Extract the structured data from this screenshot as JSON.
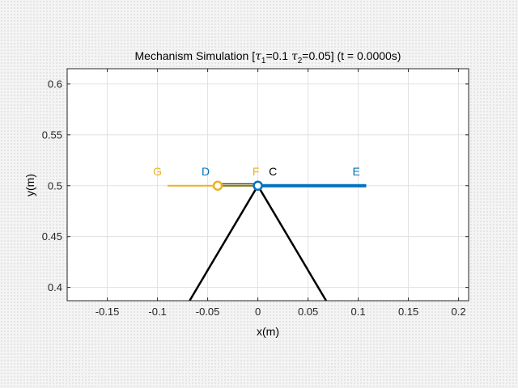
{
  "chart_data": {
    "type": "line",
    "title": {
      "prefix": "Mechanism Simulation [",
      "tau1_symbol": "τ",
      "tau1_sub": "1",
      "tau1_value": "=0.1 ",
      "tau2_symbol": "τ",
      "tau2_sub": "2",
      "tau2_value": "=0.05] (t = 0.0000s)"
    },
    "xlabel": "x(m)",
    "ylabel": "y(m)",
    "xlim": [
      -0.19,
      0.21
    ],
    "ylim": [
      0.387,
      0.615
    ],
    "grid": true,
    "xticks": [
      -0.15,
      -0.1,
      -0.05,
      0,
      0.05,
      0.1,
      0.15,
      0.2
    ],
    "yticks": [
      0.4,
      0.45,
      0.5,
      0.55,
      0.6
    ],
    "xtick_labels": [
      "-0.15",
      "-0.1",
      "-0.05",
      "0",
      "0.05",
      "0.1",
      "0.15",
      "0.2"
    ],
    "ytick_labels": [
      "0.4",
      "0.45",
      "0.5",
      "0.55",
      "0.6"
    ],
    "colors": {
      "yellow": "#EDB120",
      "blue": "#0072BD",
      "dark": "#000000",
      "olive": "#7E7E1E",
      "grid": "#dcdcdc",
      "axes": "#262626"
    },
    "series": [
      {
        "x": [
          -0.09,
          0.0
        ],
        "y": [
          0.5,
          0.5
        ],
        "color": "yellow",
        "width": 2
      },
      {
        "x": [
          0.0,
          0.108
        ],
        "y": [
          0.5,
          0.5
        ],
        "color": "blue",
        "width": 4
      },
      {
        "x": [
          -0.04,
          0.0
        ],
        "y": [
          0.5,
          0.5
        ],
        "color": "olive",
        "width": 2
      },
      {
        "x": [
          -0.04,
          0.0
        ],
        "y": [
          0.502,
          0.502
        ],
        "color": "dark",
        "width": 1
      },
      {
        "x": [
          -0.068,
          0.0
        ],
        "y": [
          0.387,
          0.5
        ],
        "color": "dark",
        "width": 2.5
      },
      {
        "x": [
          0.0,
          0.068
        ],
        "y": [
          0.5,
          0.387
        ],
        "color": "dark",
        "width": 2.5
      }
    ],
    "joints": [
      {
        "x": -0.04,
        "y": 0.5,
        "color": "yellow"
      },
      {
        "x": 0.0,
        "y": 0.5,
        "color": "blue"
      }
    ],
    "point_labels": [
      {
        "text": "G",
        "x": -0.1,
        "y": 0.514,
        "color": "yellow"
      },
      {
        "text": "D",
        "x": -0.052,
        "y": 0.514,
        "color": "blue"
      },
      {
        "text": "F",
        "x": -0.002,
        "y": 0.514,
        "color": "yellow"
      },
      {
        "text": "C",
        "x": 0.015,
        "y": 0.514,
        "color": "dark"
      },
      {
        "text": "E",
        "x": 0.098,
        "y": 0.514,
        "color": "blue"
      }
    ]
  }
}
